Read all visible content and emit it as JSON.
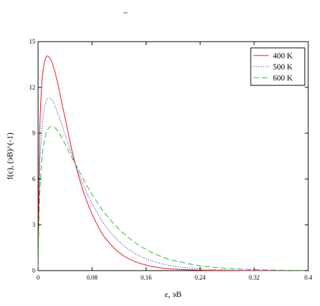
{
  "top_mark": "_",
  "chart_data": {
    "type": "line",
    "title": "",
    "xlabel": "ε, эВ",
    "ylabel": "f(ε), (эВ)^(-1)",
    "xlim": [
      0,
      0.4
    ],
    "ylim": [
      0,
      15
    ],
    "xticks": [
      0,
      0.08,
      0.16,
      0.24,
      0.32,
      0.4
    ],
    "xtick_labels": [
      "0",
      "0.08",
      "0.16",
      "0.24",
      "0.32",
      "0.4"
    ],
    "yticks": [
      0,
      3,
      6,
      9,
      12,
      15
    ],
    "ytick_labels": [
      "0",
      "3",
      "6",
      "9",
      "12",
      "15"
    ],
    "grid": false,
    "legend_position": "top-right",
    "series": [
      {
        "name": "400 K",
        "color": "#e8161b",
        "dash": "solid",
        "x": [
          0,
          0.002,
          0.005,
          0.008,
          0.012,
          0.016,
          0.02,
          0.025,
          0.03,
          0.035,
          0.04,
          0.05,
          0.06,
          0.07,
          0.08,
          0.09,
          0.1,
          0.12,
          0.14,
          0.16,
          0.18,
          0.2,
          0.24,
          0.28,
          0.32,
          0.36,
          0.4
        ],
        "y": [
          0,
          8.4,
          11.9,
          13.3,
          14.0,
          14.0,
          13.7,
          13.0,
          12.1,
          11.0,
          10.0,
          7.9,
          6.2,
          4.8,
          3.7,
          2.8,
          2.1,
          1.18,
          0.65,
          0.36,
          0.19,
          0.1,
          0.03,
          0.008,
          0.002,
          0.0005,
          0.0001
        ]
      },
      {
        "name": "500 K",
        "color": "#1b1bbf",
        "dash": "dotted",
        "x": [
          0,
          0.002,
          0.005,
          0.008,
          0.012,
          0.016,
          0.02,
          0.025,
          0.03,
          0.035,
          0.04,
          0.05,
          0.06,
          0.07,
          0.08,
          0.09,
          0.1,
          0.12,
          0.14,
          0.16,
          0.18,
          0.2,
          0.24,
          0.28,
          0.32,
          0.36,
          0.4
        ],
        "y": [
          0,
          6.0,
          8.9,
          10.3,
          11.1,
          11.3,
          11.2,
          10.8,
          10.2,
          9.6,
          8.9,
          7.6,
          6.4,
          5.3,
          4.4,
          3.6,
          2.9,
          1.9,
          1.22,
          0.78,
          0.49,
          0.3,
          0.11,
          0.04,
          0.014,
          0.005,
          0.002
        ]
      },
      {
        "name": "600 K",
        "color": "#1fbf2f",
        "dash": "dashed",
        "x": [
          0,
          0.002,
          0.005,
          0.008,
          0.012,
          0.016,
          0.02,
          0.025,
          0.03,
          0.035,
          0.04,
          0.05,
          0.06,
          0.07,
          0.08,
          0.09,
          0.1,
          0.12,
          0.14,
          0.16,
          0.18,
          0.2,
          0.24,
          0.28,
          0.32,
          0.36,
          0.4
        ],
        "y": [
          0,
          4.5,
          6.9,
          8.2,
          9.0,
          9.35,
          9.45,
          9.35,
          9.1,
          8.7,
          8.3,
          7.4,
          6.6,
          5.75,
          5.0,
          4.3,
          3.7,
          2.7,
          1.95,
          1.38,
          0.97,
          0.67,
          0.32,
          0.15,
          0.07,
          0.03,
          0.014
        ]
      }
    ]
  }
}
